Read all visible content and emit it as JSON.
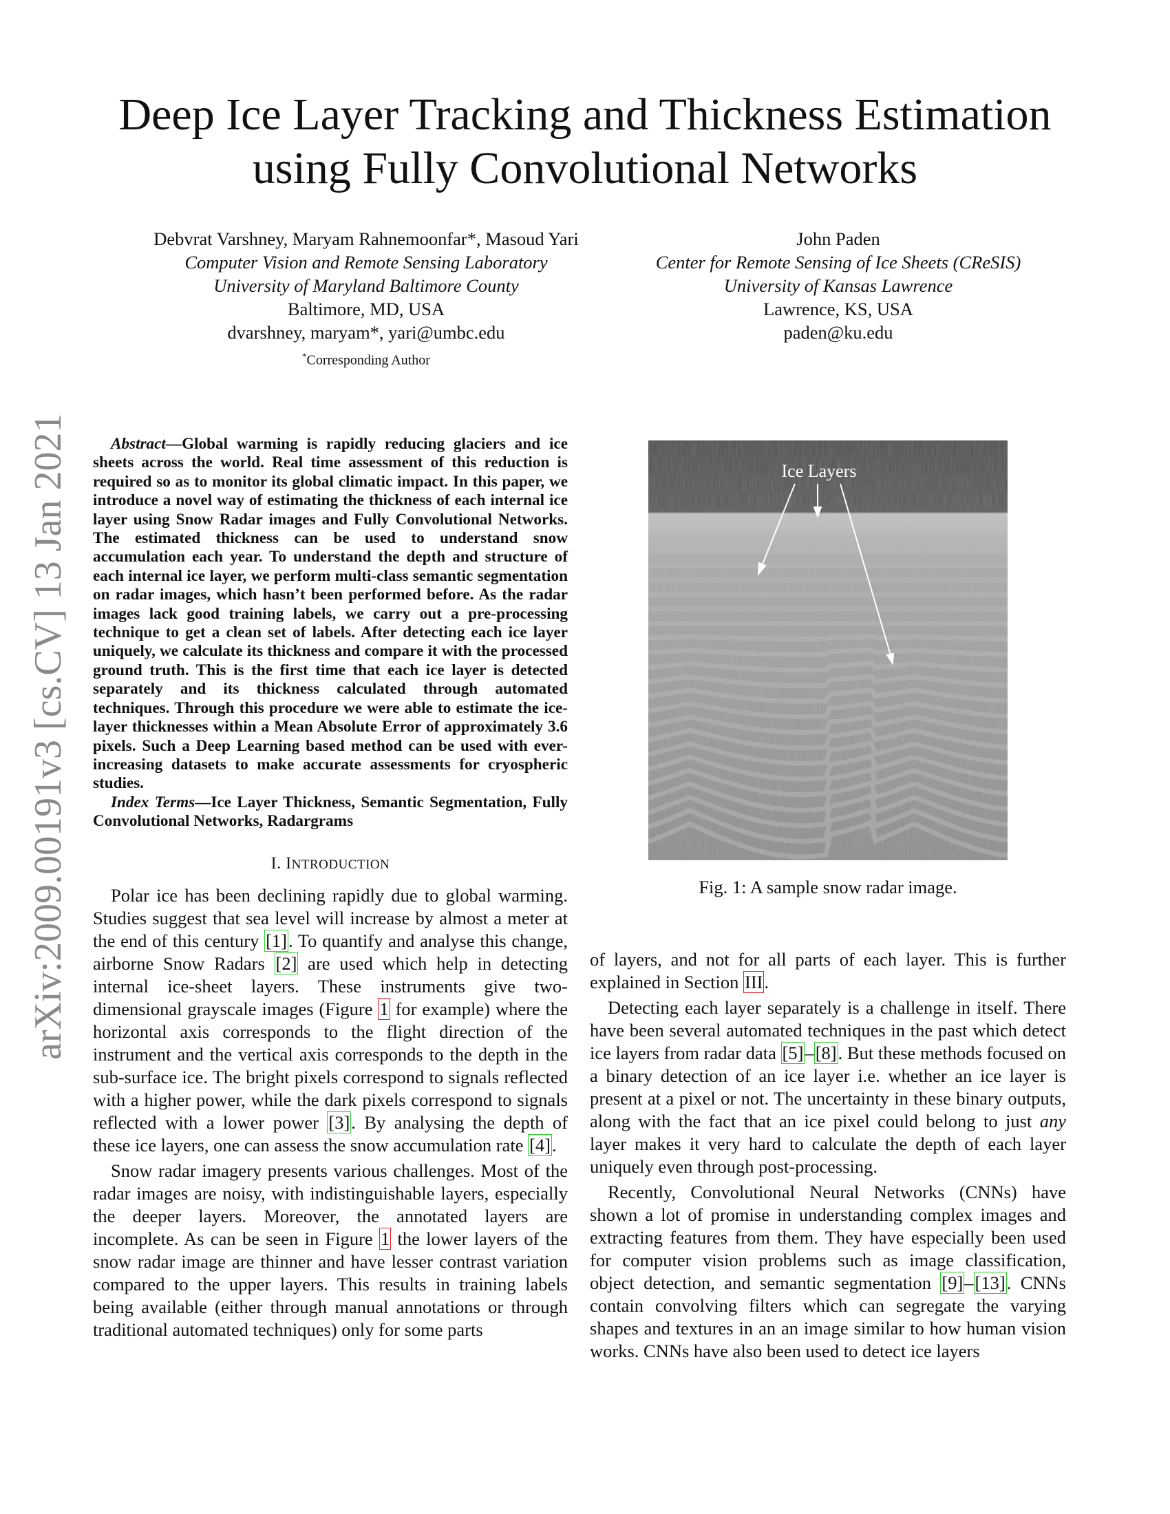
{
  "paper": {
    "title_line1": "Deep Ice Layer Tracking and Thickness Estimation",
    "title_line2": "using Fully Convolutional Networks",
    "arxiv_id": "arXiv:2009.00191v3  [cs.CV]  13 Jan 2021",
    "authors_left": {
      "names": "Debvrat Varshney, Maryam Rahnemoonfar*, Masoud Yari",
      "affil1": "Computer Vision and Remote Sensing Laboratory",
      "affil2": "University of Maryland Baltimore County",
      "location": "Baltimore, MD, USA",
      "email": "dvarshney, maryam*, yari@umbc.edu",
      "note_mark": "*",
      "note": "Corresponding Author"
    },
    "authors_right": {
      "names": "John Paden",
      "affil1": "Center for Remote Sensing of Ice Sheets (CReSIS)",
      "affil2": "University of Kansas Lawrence",
      "location": "Lawrence, KS, USA",
      "email": "paden@ku.edu"
    },
    "abstract": {
      "label": "Abstract",
      "text": "—Global warming is rapidly reducing glaciers and ice sheets across the world. Real time assessment of this reduction is required so as to monitor its global climatic impact. In this paper, we introduce a novel way of estimating the thickness of each internal ice layer using Snow Radar images and Fully Convolutional Networks. The estimated thickness can be used to understand snow accumulation each year. To understand the depth and structure of each internal ice layer, we perform multi-class semantic segmentation on radar images, which hasn’t been performed before. As the radar images lack good training labels, we carry out a pre-processing technique to get a clean set of labels. After detecting each ice layer uniquely, we calculate its thickness and compare it with the processed ground truth. This is the first time that each ice layer is detected separately and its thickness calculated through automated techniques. Through this procedure we were able to estimate the ice-layer thicknesses within a Mean Absolute Error of approximately 3.6 pixels. Such a Deep Learning based method can be used with ever-increasing datasets to make accurate assessments for cryospheric studies.",
      "index_label": "Index Terms",
      "index_text": "—Ice Layer Thickness, Semantic Segmentation, Fully Convolutional Networks, Radargrams"
    },
    "section": {
      "number": "I.",
      "first": "I",
      "rest": "NTRODUCTION"
    },
    "figure": {
      "label": "Ice Layers",
      "caption": "Fig. 1: A sample snow radar image."
    },
    "left_body": {
      "p1a": "Polar ice has been declining rapidly due to global warming. Studies suggest that sea level will increase by almost a meter at the end of this century ",
      "r1": "[1]",
      "p1b": ". To quantify and analyse this change, airborne Snow Radars ",
      "r2": "[2]",
      "p1c": " are used which help in detecting internal ice-sheet layers. These instruments give two-dimensional grayscale images (Figure ",
      "f1": "1",
      "p1d": " for example) where the horizontal axis corresponds to the flight direction of the instrument and the vertical axis corresponds to the depth in the sub-surface ice. The bright pixels correspond to signals reflected with a higher power, while the dark pixels correspond to signals reflected with a lower power ",
      "r3": "[3]",
      "p1e": ". By analysing the depth of these ice layers, one can assess the snow accumulation rate ",
      "r4": "[4]",
      "p1f": ".",
      "p2a": "Snow radar imagery presents various challenges. Most of the radar images are noisy, with indistinguishable layers, especially the deeper layers. Moreover, the annotated layers are incomplete. As can be seen in Figure ",
      "f2": "1",
      "p2b": " the lower layers of the snow radar image are thinner and have lesser contrast variation compared to the upper layers. This results in training labels being available (either through manual annotations or through traditional automated techniques) only for some parts"
    },
    "right_body": {
      "p0a": "of layers, and not for all parts of each layer. This is further explained in Section ",
      "s3": "III",
      "p0b": ".",
      "p1a": "Detecting each layer separately is a challenge in itself. There have been several automated techniques in the past which detect ice layers from radar data ",
      "r5": "[5]",
      "dash": "–",
      "r8": "[8]",
      "p1b": ". But these methods focused on a binary detection of an ice layer i.e. whether an ice layer is present at a pixel or not. The uncertainty in these binary outputs, along with the fact that an ice pixel could belong to just ",
      "any": "any",
      "p1c": " layer makes it very hard to calculate the depth of each layer uniquely even through post-processing.",
      "p2a": "Recently, Convolutional Neural Networks (CNNs) have shown a lot of promise in understanding complex images and extracting features from them. They have especially been used for computer vision problems such as image classification, object detection, and semantic segmentation ",
      "r9": "[9]",
      "dash2": "–",
      "r13": "[13]",
      "p2b": ". CNNs contain convolving filters which can segregate the varying shapes and textures in an an image similar to how human vision works. CNNs have also been used to detect ice layers"
    }
  }
}
